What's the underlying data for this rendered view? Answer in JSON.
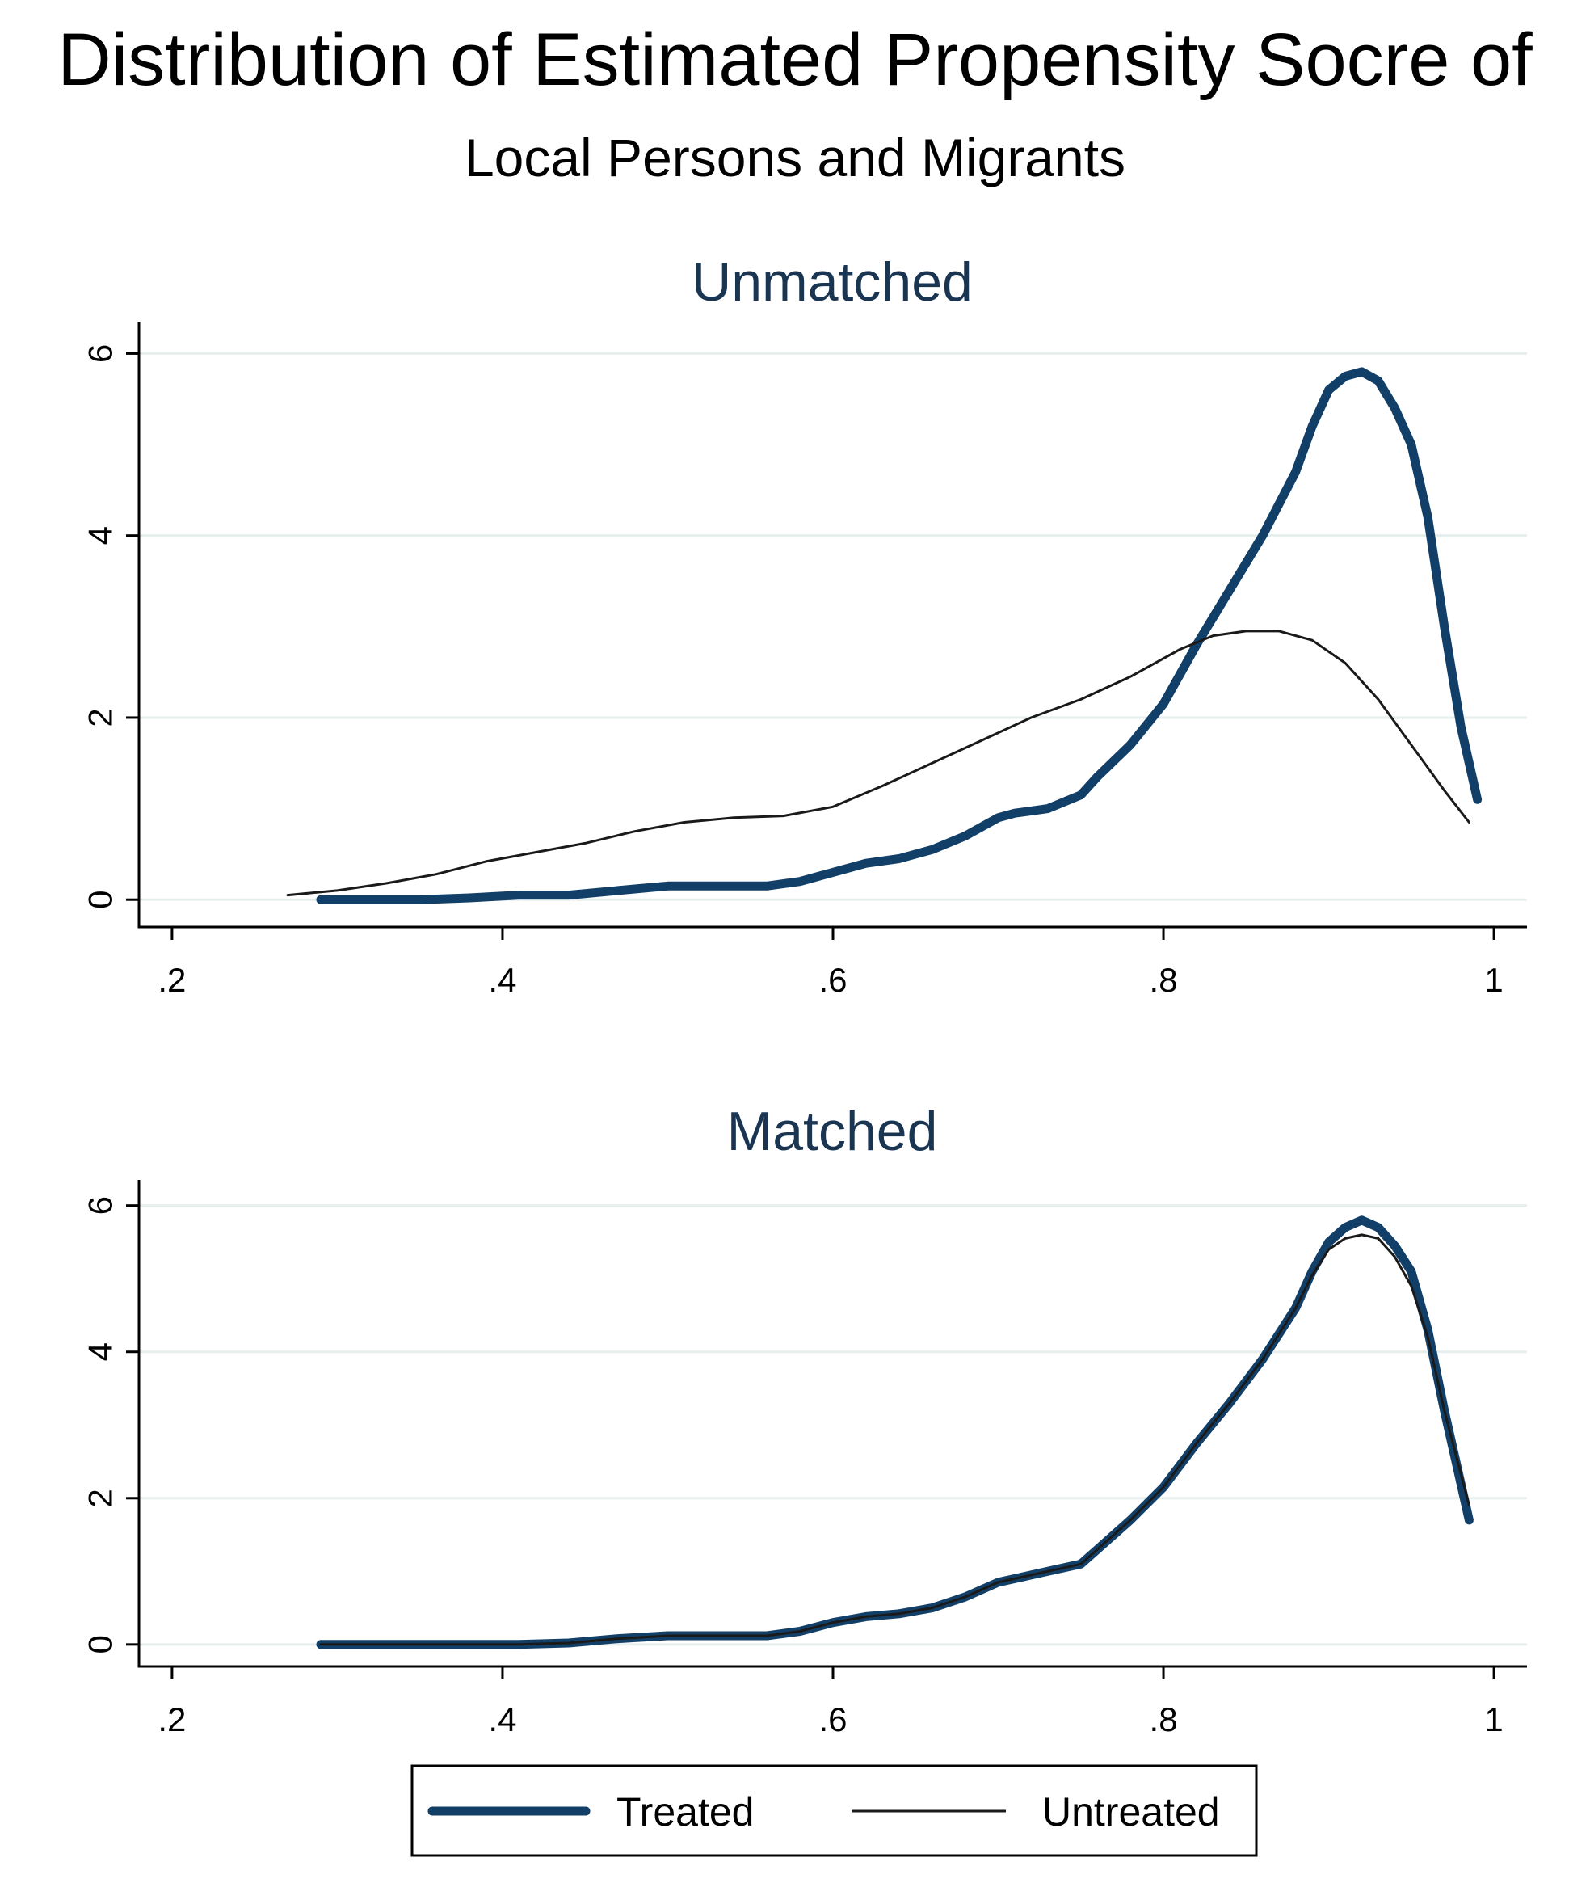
{
  "colors": {
    "treated": "#123f68",
    "untreated": "#1a1a1a",
    "grid": "#e6efee",
    "panel_title": "#1a3552"
  },
  "chart_data": {
    "type": "line",
    "title": "Distribution of Estimated Propensity Socre of",
    "subtitle": "Local Persons and Migrants",
    "legend": {
      "position": "bottom",
      "entries": [
        "Treated",
        "Untreated"
      ]
    },
    "panels": [
      {
        "title": "Unmatched",
        "xlim": [
          0.18,
          1.02
        ],
        "ylim": [
          -0.3,
          6.35
        ],
        "x_ticks": [
          0.2,
          0.4,
          0.6,
          0.8,
          1.0
        ],
        "x_tick_labels": [
          ".2",
          ".4",
          ".6",
          ".8",
          "1"
        ],
        "y_ticks": [
          0,
          2,
          4,
          6
        ],
        "y_tick_labels": [
          "0",
          "2",
          "4",
          "6"
        ],
        "grid": true,
        "series": [
          {
            "name": "Treated",
            "x": [
              0.29,
              0.32,
              0.35,
              0.38,
              0.41,
              0.44,
              0.47,
              0.5,
              0.53,
              0.56,
              0.58,
              0.6,
              0.62,
              0.64,
              0.66,
              0.68,
              0.7,
              0.71,
              0.73,
              0.75,
              0.76,
              0.78,
              0.8,
              0.82,
              0.84,
              0.86,
              0.88,
              0.89,
              0.9,
              0.91,
              0.92,
              0.93,
              0.94,
              0.95,
              0.96,
              0.97,
              0.98,
              0.99
            ],
            "y": [
              0.0,
              0.0,
              0.0,
              0.02,
              0.05,
              0.05,
              0.1,
              0.15,
              0.15,
              0.15,
              0.2,
              0.3,
              0.4,
              0.45,
              0.55,
              0.7,
              0.9,
              0.95,
              1.0,
              1.15,
              1.35,
              1.7,
              2.15,
              2.8,
              3.4,
              4.0,
              4.7,
              5.2,
              5.6,
              5.75,
              5.8,
              5.7,
              5.4,
              5.0,
              4.2,
              3.0,
              1.9,
              1.1
            ]
          },
          {
            "name": "Untreated",
            "x": [
              0.27,
              0.3,
              0.33,
              0.36,
              0.39,
              0.42,
              0.45,
              0.48,
              0.51,
              0.54,
              0.57,
              0.6,
              0.63,
              0.66,
              0.69,
              0.72,
              0.75,
              0.78,
              0.81,
              0.83,
              0.85,
              0.87,
              0.89,
              0.91,
              0.93,
              0.95,
              0.97,
              0.985
            ],
            "y": [
              0.05,
              0.1,
              0.18,
              0.28,
              0.42,
              0.52,
              0.62,
              0.75,
              0.85,
              0.9,
              0.92,
              1.02,
              1.25,
              1.5,
              1.75,
              2.0,
              2.2,
              2.45,
              2.75,
              2.9,
              2.95,
              2.95,
              2.85,
              2.6,
              2.2,
              1.7,
              1.2,
              0.85
            ]
          }
        ]
      },
      {
        "title": "Matched",
        "xlim": [
          0.18,
          1.02
        ],
        "ylim": [
          -0.3,
          6.35
        ],
        "x_ticks": [
          0.2,
          0.4,
          0.6,
          0.8,
          1.0
        ],
        "x_tick_labels": [
          ".2",
          ".4",
          ".6",
          ".8",
          "1"
        ],
        "y_ticks": [
          0,
          2,
          4,
          6
        ],
        "y_tick_labels": [
          "0",
          "2",
          "4",
          "6"
        ],
        "grid": true,
        "series": [
          {
            "name": "Treated",
            "x": [
              0.29,
              0.32,
              0.35,
              0.38,
              0.41,
              0.44,
              0.47,
              0.5,
              0.53,
              0.56,
              0.58,
              0.6,
              0.62,
              0.64,
              0.66,
              0.68,
              0.7,
              0.71,
              0.73,
              0.75,
              0.76,
              0.78,
              0.8,
              0.82,
              0.84,
              0.86,
              0.88,
              0.89,
              0.9,
              0.91,
              0.92,
              0.93,
              0.94,
              0.95,
              0.96,
              0.97,
              0.985
            ],
            "y": [
              0.0,
              0.0,
              0.0,
              0.0,
              0.0,
              0.02,
              0.08,
              0.12,
              0.12,
              0.12,
              0.18,
              0.3,
              0.38,
              0.42,
              0.5,
              0.65,
              0.85,
              0.9,
              1.0,
              1.1,
              1.3,
              1.7,
              2.15,
              2.75,
              3.3,
              3.9,
              4.6,
              5.1,
              5.5,
              5.7,
              5.8,
              5.7,
              5.45,
              5.1,
              4.3,
              3.2,
              1.7
            ]
          },
          {
            "name": "Untreated",
            "x": [
              0.29,
              0.32,
              0.35,
              0.38,
              0.41,
              0.44,
              0.47,
              0.5,
              0.53,
              0.56,
              0.58,
              0.6,
              0.62,
              0.64,
              0.66,
              0.68,
              0.7,
              0.71,
              0.73,
              0.75,
              0.76,
              0.78,
              0.8,
              0.82,
              0.84,
              0.86,
              0.88,
              0.89,
              0.9,
              0.91,
              0.92,
              0.93,
              0.94,
              0.95,
              0.96,
              0.97,
              0.985
            ],
            "y": [
              0.0,
              0.0,
              0.0,
              0.0,
              0.0,
              0.02,
              0.08,
              0.12,
              0.12,
              0.12,
              0.18,
              0.3,
              0.38,
              0.42,
              0.5,
              0.65,
              0.85,
              0.9,
              1.0,
              1.1,
              1.3,
              1.7,
              2.15,
              2.75,
              3.3,
              3.9,
              4.6,
              5.05,
              5.4,
              5.55,
              5.6,
              5.55,
              5.3,
              4.9,
              4.2,
              3.2,
              1.9
            ]
          }
        ]
      }
    ]
  }
}
